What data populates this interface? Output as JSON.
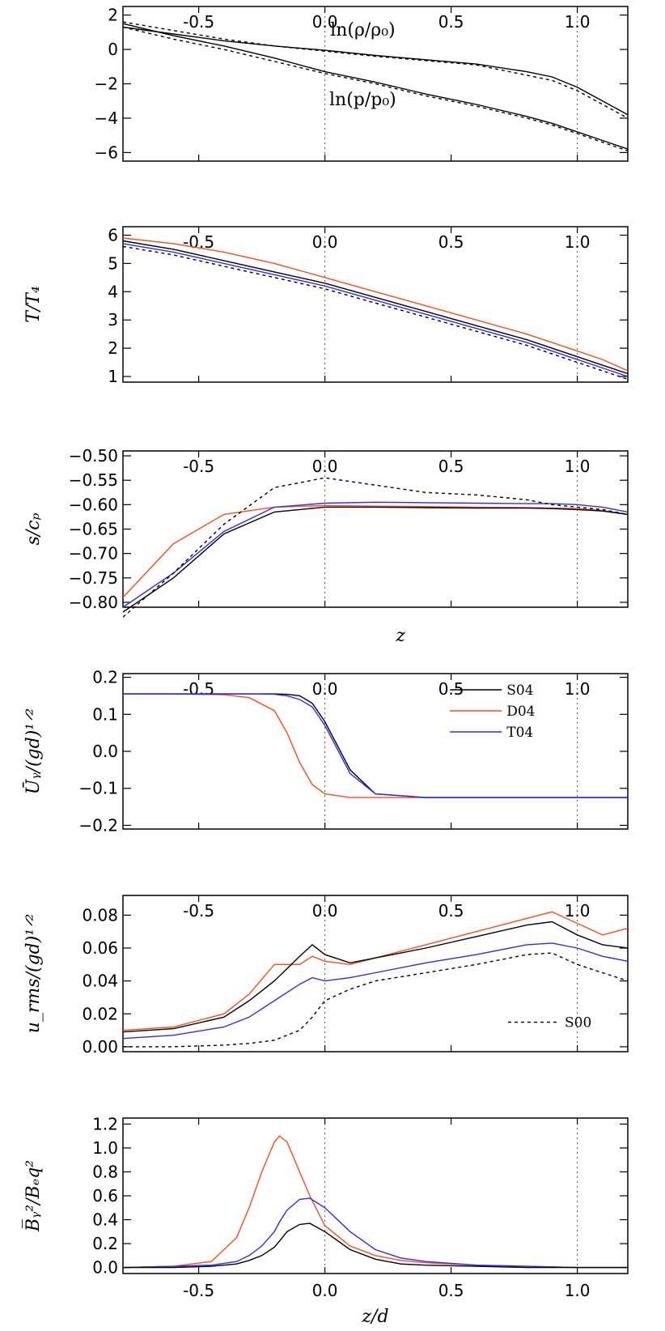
{
  "figure": {
    "series_colors": {
      "S04": "#000000",
      "D04": "#ff4a1c",
      "T04": "#2b2bff",
      "S00": "#000000"
    }
  },
  "chart_data": [
    {
      "type": "line",
      "id": "density_pressure",
      "title": "",
      "xlabel": "",
      "ylabel": "",
      "xlim": [
        -0.8,
        1.2
      ],
      "ylim": [
        -6.5,
        2.5
      ],
      "x_ticks": [
        "-0.5",
        "0.0",
        "0.5",
        "1.0"
      ],
      "y_ticks": [
        "2",
        "0",
        "−2",
        "−4",
        "−6"
      ],
      "y_tick_values": [
        2,
        0,
        -2,
        -4,
        -6
      ],
      "annotations": [
        "ln(ρ/ρ₀)",
        "ln(p/p₀)"
      ],
      "x": [
        -0.8,
        -0.6,
        -0.4,
        -0.2,
        0.0,
        0.2,
        0.4,
        0.6,
        0.8,
        0.9,
        1.0,
        1.1,
        1.2
      ],
      "series": [
        {
          "name": "ln rho S04",
          "color": "#000000",
          "dash": "",
          "values": [
            1.3,
            0.9,
            0.5,
            0.2,
            -0.05,
            -0.35,
            -0.6,
            -0.85,
            -1.3,
            -1.6,
            -2.2,
            -3.0,
            -3.8
          ]
        },
        {
          "name": "ln rho S00",
          "color": "#000000",
          "dash": "4,4",
          "values": [
            1.6,
            1.1,
            0.6,
            0.2,
            -0.1,
            -0.4,
            -0.65,
            -0.9,
            -1.5,
            -1.8,
            -2.4,
            -3.2,
            -4.0
          ]
        },
        {
          "name": "ln p S04",
          "color": "#000000",
          "dash": "",
          "values": [
            1.5,
            0.8,
            0.2,
            -0.5,
            -1.3,
            -1.9,
            -2.6,
            -3.2,
            -3.9,
            -4.3,
            -4.8,
            -5.3,
            -5.8
          ]
        },
        {
          "name": "ln p S00",
          "color": "#000000",
          "dash": "4,4",
          "values": [
            1.3,
            0.6,
            0.0,
            -0.7,
            -1.4,
            -2.0,
            -2.7,
            -3.3,
            -4.0,
            -4.4,
            -4.9,
            -5.4,
            -5.9
          ]
        }
      ]
    },
    {
      "type": "line",
      "id": "temperature",
      "title": "",
      "xlabel": "",
      "ylabel": "T/T₄",
      "xlim": [
        -0.8,
        1.2
      ],
      "ylim": [
        0.8,
        6.3
      ],
      "x_ticks": [
        "-0.5",
        "0.0",
        "0.5",
        "1.0"
      ],
      "y_ticks": [
        "6",
        "5",
        "4",
        "3",
        "2",
        "1"
      ],
      "y_tick_values": [
        6,
        5,
        4,
        3,
        2,
        1
      ],
      "annotations": [],
      "x": [
        -0.8,
        -0.6,
        -0.4,
        -0.2,
        0.0,
        0.2,
        0.4,
        0.6,
        0.8,
        0.9,
        1.0,
        1.1,
        1.2
      ],
      "series": [
        {
          "name": "D04",
          "color": "#ff4a1c",
          "dash": "",
          "values": [
            5.9,
            5.7,
            5.4,
            5.0,
            4.5,
            4.0,
            3.5,
            3.0,
            2.5,
            2.2,
            1.9,
            1.6,
            1.2
          ]
        },
        {
          "name": "S04",
          "color": "#000000",
          "dash": "",
          "values": [
            5.8,
            5.5,
            5.1,
            4.7,
            4.3,
            3.8,
            3.3,
            2.8,
            2.3,
            2.0,
            1.7,
            1.4,
            1.1
          ]
        },
        {
          "name": "T04",
          "color": "#2b2bff",
          "dash": "",
          "values": [
            5.7,
            5.4,
            5.0,
            4.6,
            4.2,
            3.7,
            3.2,
            2.7,
            2.2,
            1.9,
            1.6,
            1.3,
            1.0
          ]
        },
        {
          "name": "S00",
          "color": "#000000",
          "dash": "4,4",
          "values": [
            5.6,
            5.3,
            4.9,
            4.5,
            4.1,
            3.6,
            3.1,
            2.6,
            2.1,
            1.8,
            1.5,
            1.2,
            0.9
          ]
        }
      ]
    },
    {
      "type": "line",
      "id": "entropy",
      "title": "",
      "xlabel": "z",
      "ylabel": "s/cₚ",
      "xlim": [
        -0.8,
        1.2
      ],
      "ylim": [
        -0.81,
        -0.49
      ],
      "x_ticks": [
        "-0.5",
        "0.0",
        "0.5",
        "1.0"
      ],
      "y_ticks": [
        "−0.50",
        "−0.55",
        "−0.60",
        "−0.65",
        "−0.70",
        "−0.75",
        "−0.80"
      ],
      "y_tick_values": [
        -0.5,
        -0.55,
        -0.6,
        -0.65,
        -0.7,
        -0.75,
        -0.8
      ],
      "annotations": [],
      "x": [
        -0.8,
        -0.6,
        -0.4,
        -0.2,
        0.0,
        0.2,
        0.4,
        0.6,
        0.8,
        0.9,
        1.0,
        1.1,
        1.2
      ],
      "series": [
        {
          "name": "D04",
          "color": "#ff4a1c",
          "dash": "",
          "values": [
            -0.79,
            -0.68,
            -0.62,
            -0.605,
            -0.602,
            -0.603,
            -0.604,
            -0.605,
            -0.606,
            -0.607,
            -0.608,
            -0.612,
            -0.62
          ]
        },
        {
          "name": "S04",
          "color": "#000000",
          "dash": "",
          "values": [
            -0.82,
            -0.75,
            -0.66,
            -0.615,
            -0.605,
            -0.605,
            -0.606,
            -0.607,
            -0.607,
            -0.608,
            -0.61,
            -0.613,
            -0.62
          ]
        },
        {
          "name": "T04",
          "color": "#2b2bff",
          "dash": "",
          "values": [
            -0.81,
            -0.74,
            -0.655,
            -0.605,
            -0.597,
            -0.595,
            -0.596,
            -0.597,
            -0.598,
            -0.598,
            -0.6,
            -0.605,
            -0.615
          ]
        },
        {
          "name": "S00",
          "color": "#000000",
          "dash": "4,4",
          "values": [
            -0.83,
            -0.74,
            -0.64,
            -0.565,
            -0.545,
            -0.56,
            -0.575,
            -0.58,
            -0.59,
            -0.6,
            -0.605,
            -0.61,
            -0.62
          ]
        }
      ]
    },
    {
      "type": "line",
      "id": "mean_flow",
      "title": "",
      "xlabel": "",
      "ylabel": "Ūᵧ/(gd)¹ᐟ²",
      "xlim": [
        -0.8,
        1.2
      ],
      "ylim": [
        -0.21,
        0.21
      ],
      "x_ticks": [
        "-0.5",
        "0.0",
        "0.5",
        "1.0"
      ],
      "y_ticks": [
        "0.2",
        "0.1",
        "0.0",
        "−0.1",
        "−0.2"
      ],
      "y_tick_values": [
        0.2,
        0.1,
        0.0,
        -0.1,
        -0.2
      ],
      "annotations": [],
      "legend": [
        {
          "label": "S04",
          "color": "#000000"
        },
        {
          "label": "D04",
          "color": "#ff4a1c"
        },
        {
          "label": "T04",
          "color": "#2b2bff"
        }
      ],
      "x": [
        -0.8,
        -0.6,
        -0.4,
        -0.3,
        -0.2,
        -0.15,
        -0.1,
        -0.05,
        0.0,
        0.1,
        0.2,
        0.4,
        0.6,
        0.8,
        1.0,
        1.2
      ],
      "series": [
        {
          "name": "D04",
          "color": "#ff4a1c",
          "dash": "",
          "values": [
            0.155,
            0.155,
            0.153,
            0.145,
            0.11,
            0.05,
            -0.03,
            -0.09,
            -0.115,
            -0.125,
            -0.125,
            -0.125,
            -0.125,
            -0.125,
            -0.125,
            -0.125
          ]
        },
        {
          "name": "S04",
          "color": "#000000",
          "dash": "",
          "values": [
            0.155,
            0.155,
            0.155,
            0.155,
            0.155,
            0.154,
            0.15,
            0.13,
            0.08,
            -0.05,
            -0.115,
            -0.125,
            -0.125,
            -0.125,
            -0.125,
            -0.125
          ]
        },
        {
          "name": "T04",
          "color": "#2b2bff",
          "dash": "",
          "values": [
            0.155,
            0.155,
            0.155,
            0.155,
            0.154,
            0.15,
            0.14,
            0.12,
            0.07,
            -0.06,
            -0.115,
            -0.125,
            -0.125,
            -0.125,
            -0.125,
            -0.125
          ]
        }
      ]
    },
    {
      "type": "line",
      "id": "rms_velocity",
      "title": "",
      "xlabel": "",
      "ylabel": "u_rms/(gd)¹ᐟ²",
      "xlim": [
        -0.8,
        1.2
      ],
      "ylim": [
        -0.003,
        0.092
      ],
      "x_ticks": [
        "-0.5",
        "0.0",
        "0.5",
        "1.0"
      ],
      "y_ticks": [
        "0.08",
        "0.06",
        "0.04",
        "0.02",
        "0.00"
      ],
      "y_tick_values": [
        0.08,
        0.06,
        0.04,
        0.02,
        0.0
      ],
      "annotations": [],
      "legend": [
        {
          "label": "S00",
          "color": "#000000"
        }
      ],
      "x": [
        -0.8,
        -0.6,
        -0.4,
        -0.3,
        -0.2,
        -0.1,
        -0.05,
        0.0,
        0.1,
        0.2,
        0.4,
        0.6,
        0.8,
        0.9,
        1.0,
        1.1,
        1.2
      ],
      "series": [
        {
          "name": "D04",
          "color": "#ff4a1c",
          "dash": "",
          "values": [
            0.01,
            0.012,
            0.02,
            0.032,
            0.05,
            0.05,
            0.055,
            0.052,
            0.05,
            0.054,
            0.062,
            0.07,
            0.078,
            0.082,
            0.075,
            0.068,
            0.072
          ]
        },
        {
          "name": "S04",
          "color": "#000000",
          "dash": "",
          "values": [
            0.009,
            0.011,
            0.018,
            0.028,
            0.04,
            0.055,
            0.062,
            0.056,
            0.051,
            0.054,
            0.06,
            0.067,
            0.074,
            0.076,
            0.068,
            0.062,
            0.06
          ]
        },
        {
          "name": "T04",
          "color": "#2b2bff",
          "dash": "",
          "values": [
            0.005,
            0.007,
            0.012,
            0.018,
            0.028,
            0.038,
            0.042,
            0.04,
            0.042,
            0.045,
            0.051,
            0.056,
            0.062,
            0.063,
            0.06,
            0.055,
            0.052
          ]
        },
        {
          "name": "S00",
          "color": "#000000",
          "dash": "4,4",
          "values": [
            0.0,
            0.0,
            0.001,
            0.002,
            0.004,
            0.01,
            0.018,
            0.028,
            0.035,
            0.04,
            0.045,
            0.05,
            0.056,
            0.057,
            0.05,
            0.045,
            0.04
          ]
        }
      ]
    },
    {
      "type": "line",
      "id": "magnetic_energy",
      "title": "",
      "xlabel": "z/d",
      "ylabel": "B̅ᵧ²/Bₑq²",
      "xlim": [
        -0.8,
        1.2
      ],
      "ylim": [
        -0.05,
        1.25
      ],
      "x_ticks": [
        "-0.5",
        "0.0",
        "0.5",
        "1.0"
      ],
      "y_ticks": [
        "1.2",
        "1.0",
        "0.8",
        "0.6",
        "0.4",
        "0.2",
        "0.0"
      ],
      "y_tick_values": [
        1.2,
        1.0,
        0.8,
        0.6,
        0.4,
        0.2,
        0.0
      ],
      "annotations": [],
      "x": [
        -0.8,
        -0.6,
        -0.45,
        -0.35,
        -0.3,
        -0.25,
        -0.2,
        -0.18,
        -0.15,
        -0.1,
        -0.06,
        0.0,
        0.1,
        0.2,
        0.3,
        0.4,
        0.6,
        0.8,
        1.0,
        1.2
      ],
      "series": [
        {
          "name": "D04",
          "color": "#ff4a1c",
          "dash": "",
          "values": [
            0.0,
            0.01,
            0.05,
            0.25,
            0.5,
            0.8,
            1.05,
            1.1,
            1.05,
            0.8,
            0.6,
            0.35,
            0.18,
            0.1,
            0.06,
            0.04,
            0.02,
            0.01,
            0.0,
            0.0
          ]
        },
        {
          "name": "T04",
          "color": "#2b2bff",
          "dash": "",
          "values": [
            0.0,
            0.01,
            0.02,
            0.05,
            0.1,
            0.18,
            0.3,
            0.38,
            0.48,
            0.57,
            0.58,
            0.5,
            0.3,
            0.15,
            0.08,
            0.05,
            0.02,
            0.01,
            0.0,
            0.0
          ]
        },
        {
          "name": "S04",
          "color": "#000000",
          "dash": "",
          "values": [
            0.0,
            0.0,
            0.01,
            0.03,
            0.06,
            0.1,
            0.17,
            0.22,
            0.3,
            0.36,
            0.37,
            0.3,
            0.15,
            0.07,
            0.03,
            0.02,
            0.01,
            0.0,
            0.0,
            0.0
          ]
        }
      ]
    }
  ]
}
